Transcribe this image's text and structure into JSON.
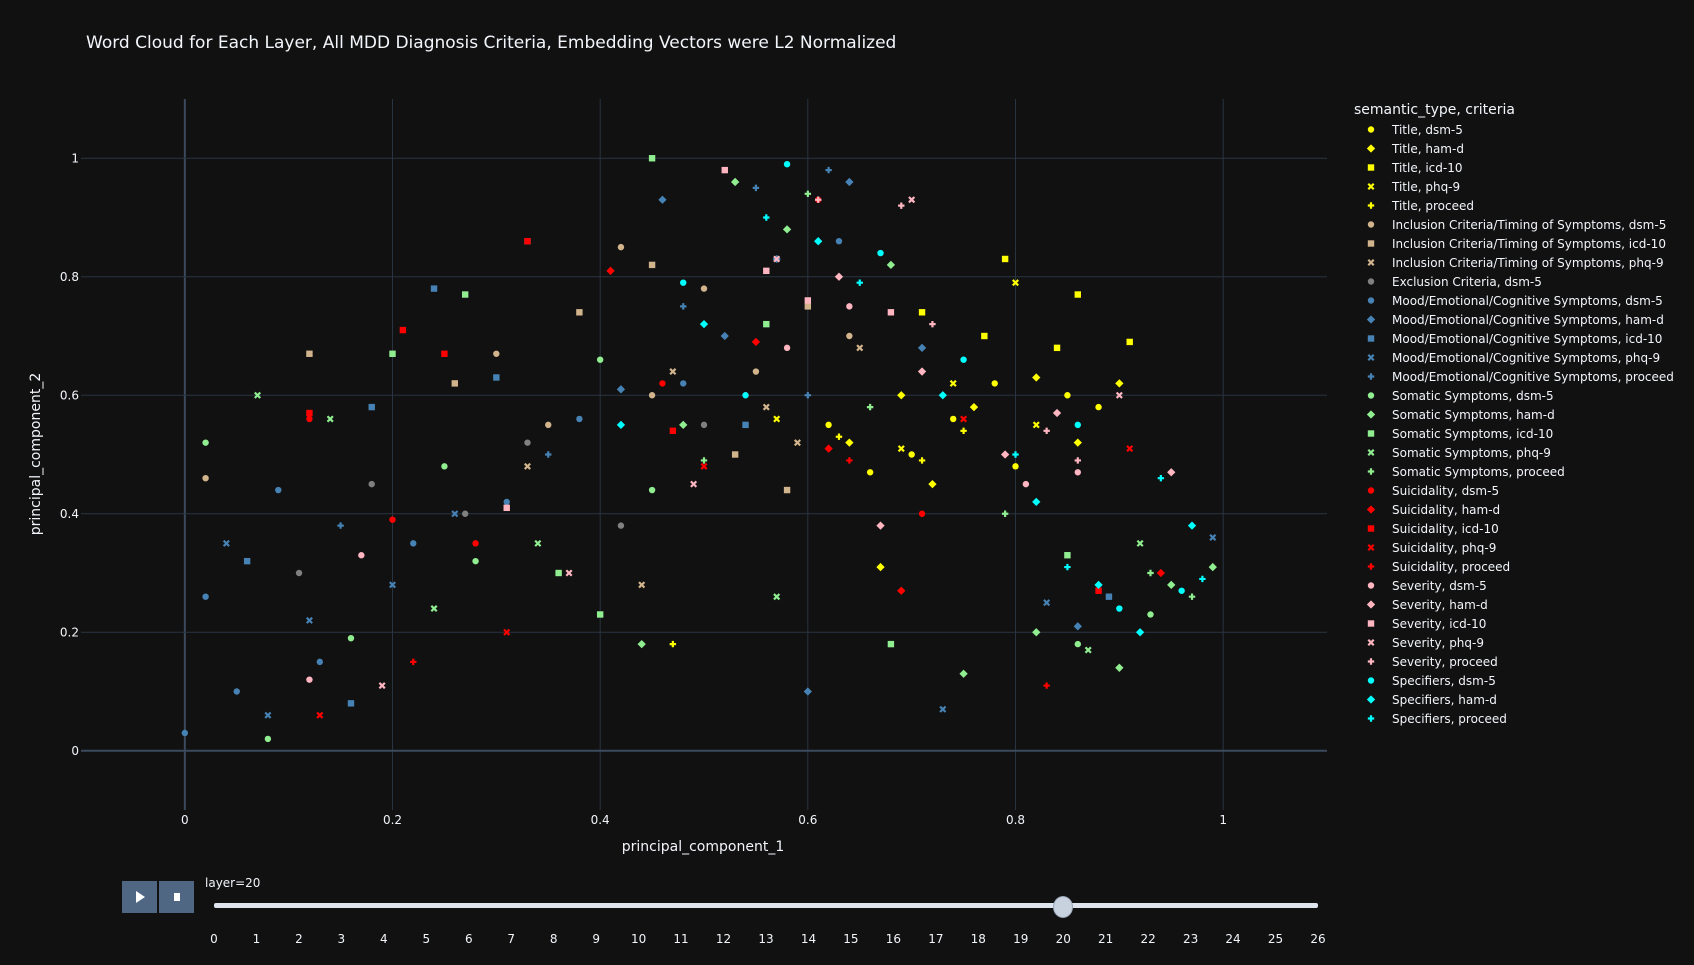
{
  "chart_data": {
    "type": "scatter",
    "title": "Word Cloud for Each Layer, All MDD Diagnosis Criteria, Embedding Vectors were L2 Normalized",
    "xlabel": "principal_component_1",
    "ylabel": "principal_component_2",
    "xlim": [
      -0.1,
      1.1
    ],
    "ylim": [
      -0.1,
      1.1
    ],
    "xticks": [
      "0",
      "0.2",
      "0.4",
      "0.6",
      "0.8",
      "1"
    ],
    "yticks": [
      "0",
      "0.2",
      "0.4",
      "0.6",
      "0.8",
      "1"
    ],
    "xtick_values": [
      0,
      0.2,
      0.4,
      0.6,
      0.8,
      1
    ],
    "ytick_values": [
      0,
      0.2,
      0.4,
      0.6,
      0.8,
      1
    ],
    "grid": true,
    "legend_title": "semantic_type, criteria",
    "legend_placement": "right",
    "series": [
      {
        "name": "Title, dsm-5",
        "color": "#FFFF00",
        "symbol": "circle",
        "points": [
          [
            0.62,
            0.55
          ],
          [
            0.7,
            0.5
          ],
          [
            0.78,
            0.62
          ],
          [
            0.85,
            0.6
          ],
          [
            0.66,
            0.47
          ],
          [
            0.74,
            0.56
          ],
          [
            0.88,
            0.58
          ],
          [
            0.8,
            0.48
          ]
        ]
      },
      {
        "name": "Title, ham-d",
        "color": "#FFFF00",
        "symbol": "diamond",
        "points": [
          [
            0.64,
            0.52
          ],
          [
            0.72,
            0.45
          ],
          [
            0.82,
            0.63
          ],
          [
            0.76,
            0.58
          ],
          [
            0.69,
            0.6
          ],
          [
            0.86,
            0.52
          ],
          [
            0.9,
            0.62
          ],
          [
            0.67,
            0.31
          ]
        ]
      },
      {
        "name": "Title, icd-10",
        "color": "#FFFF00",
        "symbol": "square",
        "points": [
          [
            0.79,
            0.83
          ],
          [
            0.86,
            0.77
          ],
          [
            0.91,
            0.69
          ],
          [
            0.84,
            0.68
          ],
          [
            0.71,
            0.74
          ],
          [
            0.77,
            0.7
          ]
        ]
      },
      {
        "name": "Title, phq-9",
        "color": "#FFFF00",
        "symbol": "x",
        "points": [
          [
            0.8,
            0.79
          ],
          [
            0.82,
            0.55
          ],
          [
            0.74,
            0.62
          ],
          [
            0.57,
            0.56
          ],
          [
            0.69,
            0.51
          ]
        ]
      },
      {
        "name": "Title, proceed",
        "color": "#FFFF00",
        "symbol": "cross",
        "points": [
          [
            0.47,
            0.18
          ],
          [
            0.63,
            0.53
          ],
          [
            0.75,
            0.54
          ],
          [
            0.71,
            0.49
          ]
        ]
      },
      {
        "name": "Inclusion Criteria/Timing of Symptoms, dsm-5",
        "color": "#D2B48C",
        "symbol": "circle",
        "points": [
          [
            0.42,
            0.85
          ],
          [
            0.5,
            0.78
          ],
          [
            0.55,
            0.64
          ],
          [
            0.3,
            0.67
          ],
          [
            0.64,
            0.7
          ],
          [
            0.02,
            0.46
          ],
          [
            0.45,
            0.6
          ],
          [
            0.35,
            0.55
          ]
        ]
      },
      {
        "name": "Inclusion Criteria/Timing of Symptoms, icd-10",
        "color": "#D2B48C",
        "symbol": "square",
        "points": [
          [
            0.12,
            0.67
          ],
          [
            0.45,
            0.82
          ],
          [
            0.6,
            0.75
          ],
          [
            0.53,
            0.5
          ],
          [
            0.26,
            0.62
          ],
          [
            0.58,
            0.44
          ],
          [
            0.38,
            0.74
          ]
        ]
      },
      {
        "name": "Inclusion Criteria/Timing of Symptoms, phq-9",
        "color": "#D2B48C",
        "symbol": "x",
        "points": [
          [
            0.47,
            0.64
          ],
          [
            0.56,
            0.58
          ],
          [
            0.65,
            0.68
          ],
          [
            0.33,
            0.48
          ],
          [
            0.44,
            0.28
          ],
          [
            0.59,
            0.52
          ]
        ]
      },
      {
        "name": "Exclusion Criteria, dsm-5",
        "color": "#808080",
        "symbol": "circle",
        "points": [
          [
            0.18,
            0.45
          ],
          [
            0.27,
            0.4
          ],
          [
            0.33,
            0.52
          ],
          [
            0.42,
            0.38
          ],
          [
            0.11,
            0.3
          ],
          [
            0.5,
            0.55
          ]
        ]
      },
      {
        "name": "Mood/Emotional/Cognitive Symptoms, dsm-5",
        "color": "#4682B4",
        "symbol": "circle",
        "points": [
          [
            0.02,
            0.26
          ],
          [
            0.05,
            0.1
          ],
          [
            0.13,
            0.15
          ],
          [
            0.22,
            0.35
          ],
          [
            0.31,
            0.42
          ],
          [
            0.48,
            0.62
          ],
          [
            0.63,
            0.86
          ],
          [
            0.0,
            0.03
          ],
          [
            0.09,
            0.44
          ],
          [
            0.38,
            0.56
          ]
        ]
      },
      {
        "name": "Mood/Emotional/Cognitive Symptoms, ham-d",
        "color": "#4682B4",
        "symbol": "diamond",
        "points": [
          [
            0.46,
            0.93
          ],
          [
            0.57,
            0.83
          ],
          [
            0.64,
            0.96
          ],
          [
            0.52,
            0.7
          ],
          [
            0.42,
            0.61
          ],
          [
            0.71,
            0.68
          ],
          [
            0.86,
            0.21
          ],
          [
            0.6,
            0.1
          ]
        ]
      },
      {
        "name": "Mood/Emotional/Cognitive Symptoms, icd-10",
        "color": "#4682B4",
        "symbol": "square",
        "points": [
          [
            0.24,
            0.78
          ],
          [
            0.3,
            0.63
          ],
          [
            0.06,
            0.32
          ],
          [
            0.18,
            0.58
          ],
          [
            0.33,
            0.86
          ],
          [
            0.54,
            0.55
          ],
          [
            0.89,
            0.26
          ],
          [
            0.16,
            0.08
          ]
        ]
      },
      {
        "name": "Mood/Emotional/Cognitive Symptoms, phq-9",
        "color": "#4682B4",
        "symbol": "x",
        "points": [
          [
            0.04,
            0.35
          ],
          [
            0.08,
            0.06
          ],
          [
            0.12,
            0.22
          ],
          [
            0.2,
            0.28
          ],
          [
            0.26,
            0.4
          ],
          [
            0.73,
            0.07
          ],
          [
            0.83,
            0.25
          ],
          [
            0.99,
            0.36
          ]
        ]
      },
      {
        "name": "Mood/Emotional/Cognitive Symptoms, proceed",
        "color": "#4682B4",
        "symbol": "cross",
        "points": [
          [
            0.55,
            0.95
          ],
          [
            0.62,
            0.98
          ],
          [
            0.48,
            0.75
          ],
          [
            0.35,
            0.5
          ],
          [
            0.15,
            0.38
          ],
          [
            0.6,
            0.6
          ]
        ]
      },
      {
        "name": "Somatic Symptoms, dsm-5",
        "color": "#90EE90",
        "symbol": "circle",
        "points": [
          [
            0.02,
            0.52
          ],
          [
            0.08,
            0.02
          ],
          [
            0.16,
            0.19
          ],
          [
            0.25,
            0.48
          ],
          [
            0.28,
            0.32
          ],
          [
            0.45,
            0.44
          ],
          [
            0.86,
            0.18
          ],
          [
            0.93,
            0.23
          ],
          [
            0.4,
            0.66
          ]
        ]
      },
      {
        "name": "Somatic Symptoms, ham-d",
        "color": "#90EE90",
        "symbol": "diamond",
        "points": [
          [
            0.53,
            0.96
          ],
          [
            0.58,
            0.88
          ],
          [
            0.48,
            0.55
          ],
          [
            0.68,
            0.82
          ],
          [
            0.9,
            0.14
          ],
          [
            0.95,
            0.28
          ],
          [
            0.99,
            0.31
          ],
          [
            0.82,
            0.2
          ],
          [
            0.75,
            0.13
          ],
          [
            0.44,
            0.18
          ]
        ]
      },
      {
        "name": "Somatic Symptoms, icd-10",
        "color": "#90EE90",
        "symbol": "square",
        "points": [
          [
            0.45,
            1.0
          ],
          [
            0.2,
            0.67
          ],
          [
            0.27,
            0.77
          ],
          [
            0.36,
            0.3
          ],
          [
            0.4,
            0.23
          ],
          [
            0.68,
            0.18
          ],
          [
            0.85,
            0.33
          ],
          [
            0.56,
            0.72
          ]
        ]
      },
      {
        "name": "Somatic Symptoms, phq-9",
        "color": "#90EE90",
        "symbol": "x",
        "points": [
          [
            0.07,
            0.6
          ],
          [
            0.14,
            0.56
          ],
          [
            0.24,
            0.24
          ],
          [
            0.34,
            0.35
          ],
          [
            0.57,
            0.26
          ],
          [
            0.87,
            0.17
          ],
          [
            0.92,
            0.35
          ]
        ]
      },
      {
        "name": "Somatic Symptoms, proceed",
        "color": "#90EE90",
        "symbol": "cross",
        "points": [
          [
            0.5,
            0.49
          ],
          [
            0.6,
            0.94
          ],
          [
            0.66,
            0.58
          ],
          [
            0.93,
            0.3
          ],
          [
            0.97,
            0.26
          ],
          [
            0.79,
            0.4
          ]
        ]
      },
      {
        "name": "Suicidality, dsm-5",
        "color": "#FF0000",
        "symbol": "circle",
        "points": [
          [
            0.12,
            0.56
          ],
          [
            0.2,
            0.39
          ],
          [
            0.28,
            0.35
          ],
          [
            0.46,
            0.62
          ],
          [
            0.61,
            0.93
          ],
          [
            0.71,
            0.4
          ]
        ]
      },
      {
        "name": "Suicidality, ham-d",
        "color": "#FF0000",
        "symbol": "diamond",
        "points": [
          [
            0.41,
            0.81
          ],
          [
            0.55,
            0.69
          ],
          [
            0.62,
            0.51
          ],
          [
            0.69,
            0.27
          ],
          [
            0.94,
            0.3
          ]
        ]
      },
      {
        "name": "Suicidality, icd-10",
        "color": "#FF0000",
        "symbol": "square",
        "points": [
          [
            0.21,
            0.71
          ],
          [
            0.25,
            0.67
          ],
          [
            0.33,
            0.86
          ],
          [
            0.12,
            0.57
          ],
          [
            0.88,
            0.27
          ],
          [
            0.47,
            0.54
          ]
        ]
      },
      {
        "name": "Suicidality, phq-9",
        "color": "#FF0000",
        "symbol": "x",
        "points": [
          [
            0.31,
            0.2
          ],
          [
            0.5,
            0.48
          ],
          [
            0.13,
            0.06
          ],
          [
            0.75,
            0.56
          ],
          [
            0.91,
            0.51
          ]
        ]
      },
      {
        "name": "Suicidality, proceed",
        "color": "#FF0000",
        "symbol": "cross",
        "points": [
          [
            0.54,
            0.6
          ],
          [
            0.22,
            0.15
          ],
          [
            0.83,
            0.11
          ],
          [
            0.64,
            0.49
          ]
        ]
      },
      {
        "name": "Severity, dsm-5",
        "color": "#FFB6C1",
        "symbol": "circle",
        "points": [
          [
            0.17,
            0.33
          ],
          [
            0.12,
            0.12
          ],
          [
            0.58,
            0.68
          ],
          [
            0.64,
            0.75
          ],
          [
            0.81,
            0.45
          ],
          [
            0.86,
            0.47
          ]
        ]
      },
      {
        "name": "Severity, ham-d",
        "color": "#FFB6C1",
        "symbol": "diamond",
        "points": [
          [
            0.63,
            0.8
          ],
          [
            0.71,
            0.64
          ],
          [
            0.79,
            0.5
          ],
          [
            0.84,
            0.57
          ],
          [
            0.95,
            0.47
          ],
          [
            0.67,
            0.38
          ]
        ]
      },
      {
        "name": "Severity, icd-10",
        "color": "#FFB6C1",
        "symbol": "square",
        "points": [
          [
            0.52,
            0.98
          ],
          [
            0.6,
            0.76
          ],
          [
            0.68,
            0.74
          ],
          [
            0.56,
            0.81
          ],
          [
            0.31,
            0.41
          ]
        ]
      },
      {
        "name": "Severity, phq-9",
        "color": "#FFB6C1",
        "symbol": "x",
        "points": [
          [
            0.7,
            0.93
          ],
          [
            0.57,
            0.83
          ],
          [
            0.37,
            0.3
          ],
          [
            0.19,
            0.11
          ],
          [
            0.9,
            0.6
          ],
          [
            0.49,
            0.45
          ]
        ]
      },
      {
        "name": "Severity, proceed",
        "color": "#FFB6C1",
        "symbol": "cross",
        "points": [
          [
            0.61,
            0.93
          ],
          [
            0.69,
            0.92
          ],
          [
            0.72,
            0.72
          ],
          [
            0.86,
            0.49
          ],
          [
            0.83,
            0.54
          ]
        ]
      },
      {
        "name": "Specifiers, dsm-5",
        "color": "#00FFFF",
        "symbol": "circle",
        "points": [
          [
            0.48,
            0.79
          ],
          [
            0.58,
            0.99
          ],
          [
            0.67,
            0.84
          ],
          [
            0.75,
            0.66
          ],
          [
            0.86,
            0.55
          ],
          [
            0.9,
            0.24
          ],
          [
            0.96,
            0.27
          ],
          [
            0.54,
            0.6
          ]
        ]
      },
      {
        "name": "Specifiers, ham-d",
        "color": "#00FFFF",
        "symbol": "diamond",
        "points": [
          [
            0.5,
            0.72
          ],
          [
            0.61,
            0.86
          ],
          [
            0.73,
            0.6
          ],
          [
            0.82,
            0.42
          ],
          [
            0.88,
            0.28
          ],
          [
            0.97,
            0.38
          ],
          [
            0.42,
            0.55
          ],
          [
            0.92,
            0.2
          ]
        ]
      },
      {
        "name": "Specifiers, proceed",
        "color": "#00FFFF",
        "symbol": "cross",
        "points": [
          [
            0.56,
            0.9
          ],
          [
            0.65,
            0.79
          ],
          [
            0.8,
            0.5
          ],
          [
            0.85,
            0.31
          ],
          [
            0.94,
            0.46
          ],
          [
            0.98,
            0.29
          ]
        ]
      }
    ]
  },
  "slider": {
    "label": "layer=20",
    "current": 20,
    "steps": [
      "0",
      "1",
      "2",
      "3",
      "4",
      "5",
      "6",
      "7",
      "8",
      "9",
      "10",
      "11",
      "12",
      "13",
      "14",
      "15",
      "16",
      "17",
      "18",
      "19",
      "20",
      "21",
      "22",
      "23",
      "24",
      "25",
      "26"
    ]
  },
  "controls": {
    "play_icon": "play-icon",
    "stop_icon": "stop-icon"
  }
}
